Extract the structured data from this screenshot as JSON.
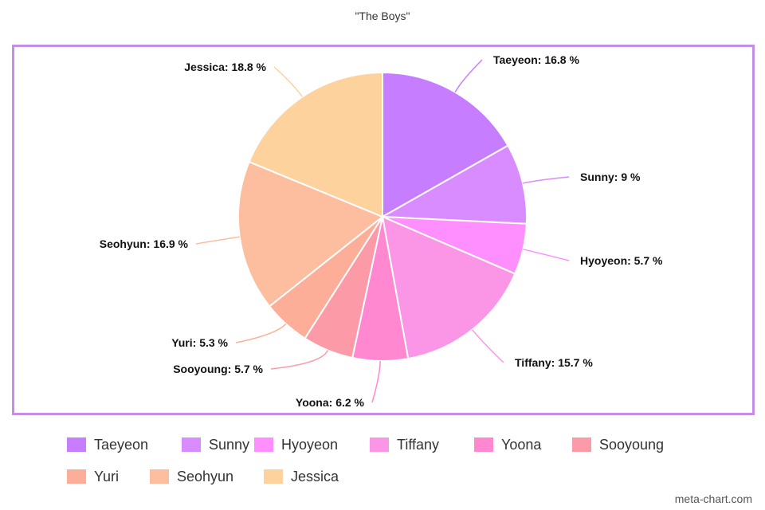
{
  "chart_data": {
    "type": "pie",
    "title": "\"The Boys\"",
    "labels": [
      "Taeyeon",
      "Sunny",
      "Hyoyeon",
      "Tiffany",
      "Yoona",
      "Sooyoung",
      "Yuri",
      "Seohyun",
      "Jessica"
    ],
    "values": [
      16.8,
      9,
      5.7,
      15.7,
      6.2,
      5.7,
      5.3,
      16.9,
      18.8
    ],
    "value_labels": [
      "Taeyeon: 16.8 %",
      "Sunny: 9 %",
      "Hyoyeon: 5.7 %",
      "Tiffany: 15.7 %",
      "Yoona: 6.2 %",
      "Sooyoung: 5.7 %",
      "Yuri: 5.3 %",
      "Seohyun: 16.9 %",
      "Jessica: 18.8 %"
    ],
    "colors": [
      "#c77dff",
      "#d98cff",
      "#ff8fff",
      "#fb96e6",
      "#ff88d1",
      "#fc9aa8",
      "#fdae98",
      "#fdbea0",
      "#fdd29d"
    ],
    "legend_placement": "bottom"
  },
  "watermark": "meta-chart.com"
}
